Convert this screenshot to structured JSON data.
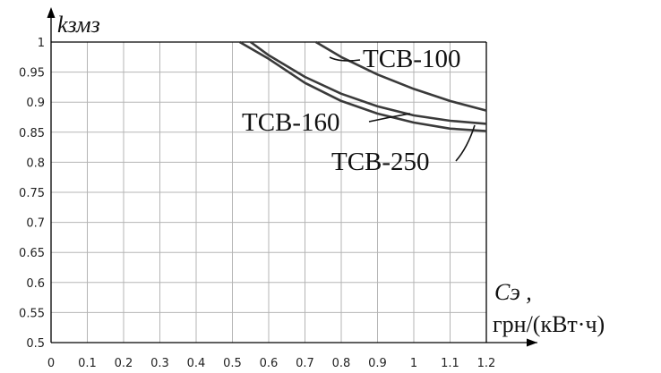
{
  "chart_data": {
    "type": "line",
    "xlabel_main": "Cэ ,",
    "xlabel_unit": "грн/(кВт·ч)",
    "ylabel": "kзмз",
    "xlim": [
      0,
      1.2
    ],
    "ylim": [
      0.5,
      1
    ],
    "x_ticks": [
      "0",
      "0.1",
      "0.2",
      "0.3",
      "0.4",
      "0.5",
      "0.6",
      "0.7",
      "0.8",
      "0.9",
      "1",
      "1.1",
      "1.2"
    ],
    "y_ticks": [
      "0.5",
      "0.55",
      "0.6",
      "0.65",
      "0.7",
      "0.75",
      "0.8",
      "0.85",
      "0.9",
      "0.95",
      "1"
    ],
    "grid": true,
    "series": [
      {
        "name": "ТСВ-100",
        "x": [
          0.73,
          0.8,
          0.9,
          1.0,
          1.1,
          1.2
        ],
        "y": [
          1.0,
          0.975,
          0.946,
          0.922,
          0.902,
          0.886
        ]
      },
      {
        "name": "ТСВ-160",
        "x": [
          0.55,
          0.6,
          0.7,
          0.8,
          0.9,
          1.0,
          1.1,
          1.2
        ],
        "y": [
          1.0,
          0.978,
          0.942,
          0.914,
          0.893,
          0.878,
          0.869,
          0.864
        ]
      },
      {
        "name": "ТСВ-250",
        "x": [
          0.52,
          0.6,
          0.7,
          0.8,
          0.9,
          1.0,
          1.1,
          1.2
        ],
        "y": [
          1.0,
          0.972,
          0.932,
          0.902,
          0.881,
          0.866,
          0.856,
          0.852
        ]
      }
    ]
  }
}
